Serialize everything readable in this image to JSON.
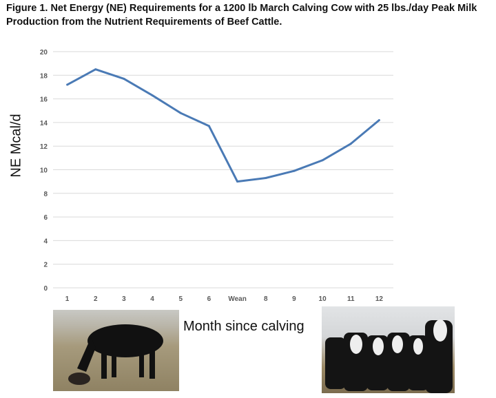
{
  "title": "Figure 1. Net Energy (NE) Requirements for a 1200 lb March Calving Cow with 25 lbs./day Peak Milk Production from the Nutrient Requirements of Beef Cattle.",
  "chart_data": {
    "type": "line",
    "title": "Figure 1. Net Energy (NE) Requirements for a 1200 lb March Calving Cow with 25 lbs./day Peak Milk Production from the Nutrient Requirements of Beef Cattle.",
    "xlabel": "Month since calving",
    "ylabel": "NE Mcal/d",
    "categories": [
      "1",
      "2",
      "3",
      "4",
      "5",
      "6",
      "Wean",
      "8",
      "9",
      "10",
      "11",
      "12"
    ],
    "series": [
      {
        "values": [
          17.2,
          18.5,
          17.7,
          16.3,
          14.8,
          13.7,
          9.0,
          9.3,
          9.9,
          10.8,
          12.2,
          14.2
        ],
        "color": "#4a7ab5"
      }
    ],
    "ylim": [
      0,
      20
    ],
    "yticks": [
      0,
      2,
      4,
      6,
      8,
      10,
      12,
      14,
      16,
      18,
      20
    ],
    "grid": true,
    "legend": "none"
  },
  "images": {
    "left": "black cow grazing beside newborn calf",
    "right": "group of black and black-baldy cows"
  }
}
